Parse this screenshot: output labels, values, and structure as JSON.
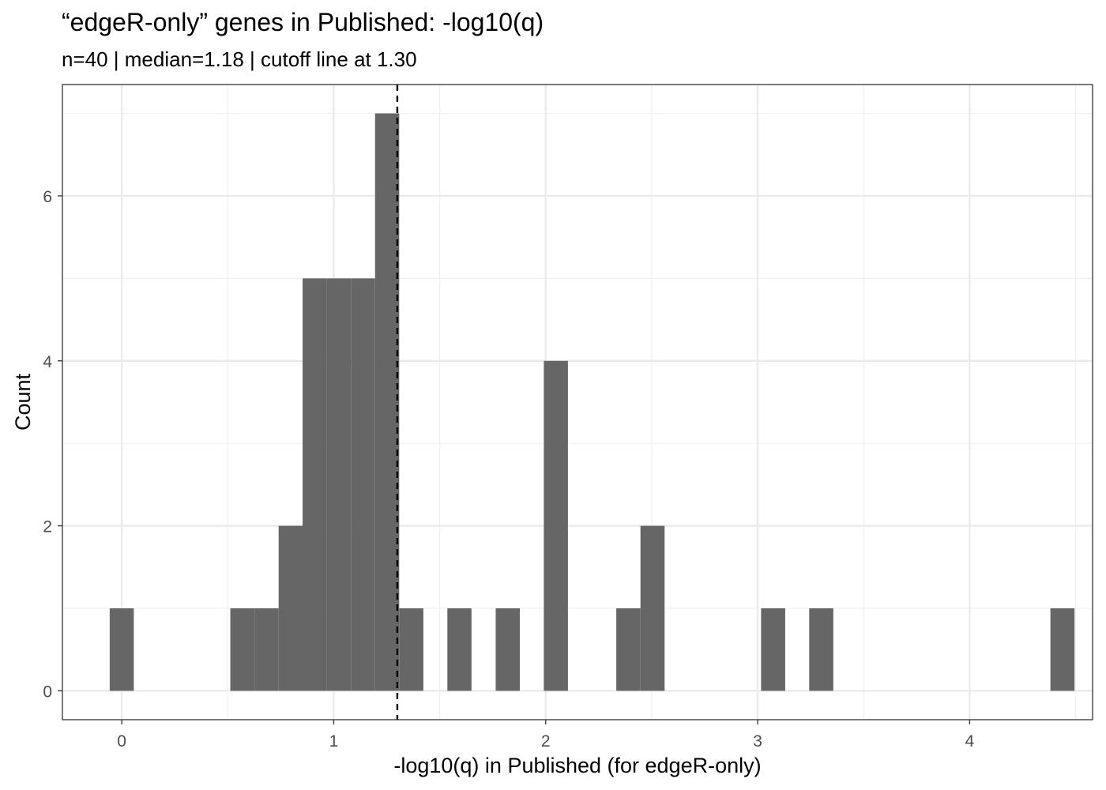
{
  "title": "“edgeR-only” genes in Published: -log10(q)",
  "subtitle": "n=40 | median=1.18 | cutoff line at 1.30",
  "chart_data": {
    "type": "bar",
    "subtype": "histogram",
    "xlabel": "-log10(q) in Published (for edgeR-only)",
    "ylabel": "Count",
    "xlim": [
      -0.28,
      4.58
    ],
    "ylim": [
      -0.35,
      7.35
    ],
    "x_ticks": [
      0,
      1,
      2,
      3,
      4
    ],
    "y_ticks": [
      0,
      2,
      4,
      6
    ],
    "bin_width": 0.1138,
    "bins": [
      {
        "center": 0.0,
        "count": 1
      },
      {
        "center": 0.569,
        "count": 1
      },
      {
        "center": 0.683,
        "count": 1
      },
      {
        "center": 0.797,
        "count": 2
      },
      {
        "center": 0.91,
        "count": 5
      },
      {
        "center": 1.024,
        "count": 5
      },
      {
        "center": 1.138,
        "count": 5
      },
      {
        "center": 1.252,
        "count": 7
      },
      {
        "center": 1.366,
        "count": 1
      },
      {
        "center": 1.593,
        "count": 1
      },
      {
        "center": 1.821,
        "count": 1
      },
      {
        "center": 2.048,
        "count": 4
      },
      {
        "center": 2.39,
        "count": 1
      },
      {
        "center": 2.504,
        "count": 2
      },
      {
        "center": 3.073,
        "count": 1
      },
      {
        "center": 3.3,
        "count": 1
      },
      {
        "center": 4.438,
        "count": 1
      }
    ],
    "cutoff": 1.3,
    "bar_color": "#595959",
    "grid": true,
    "legend": "none"
  }
}
